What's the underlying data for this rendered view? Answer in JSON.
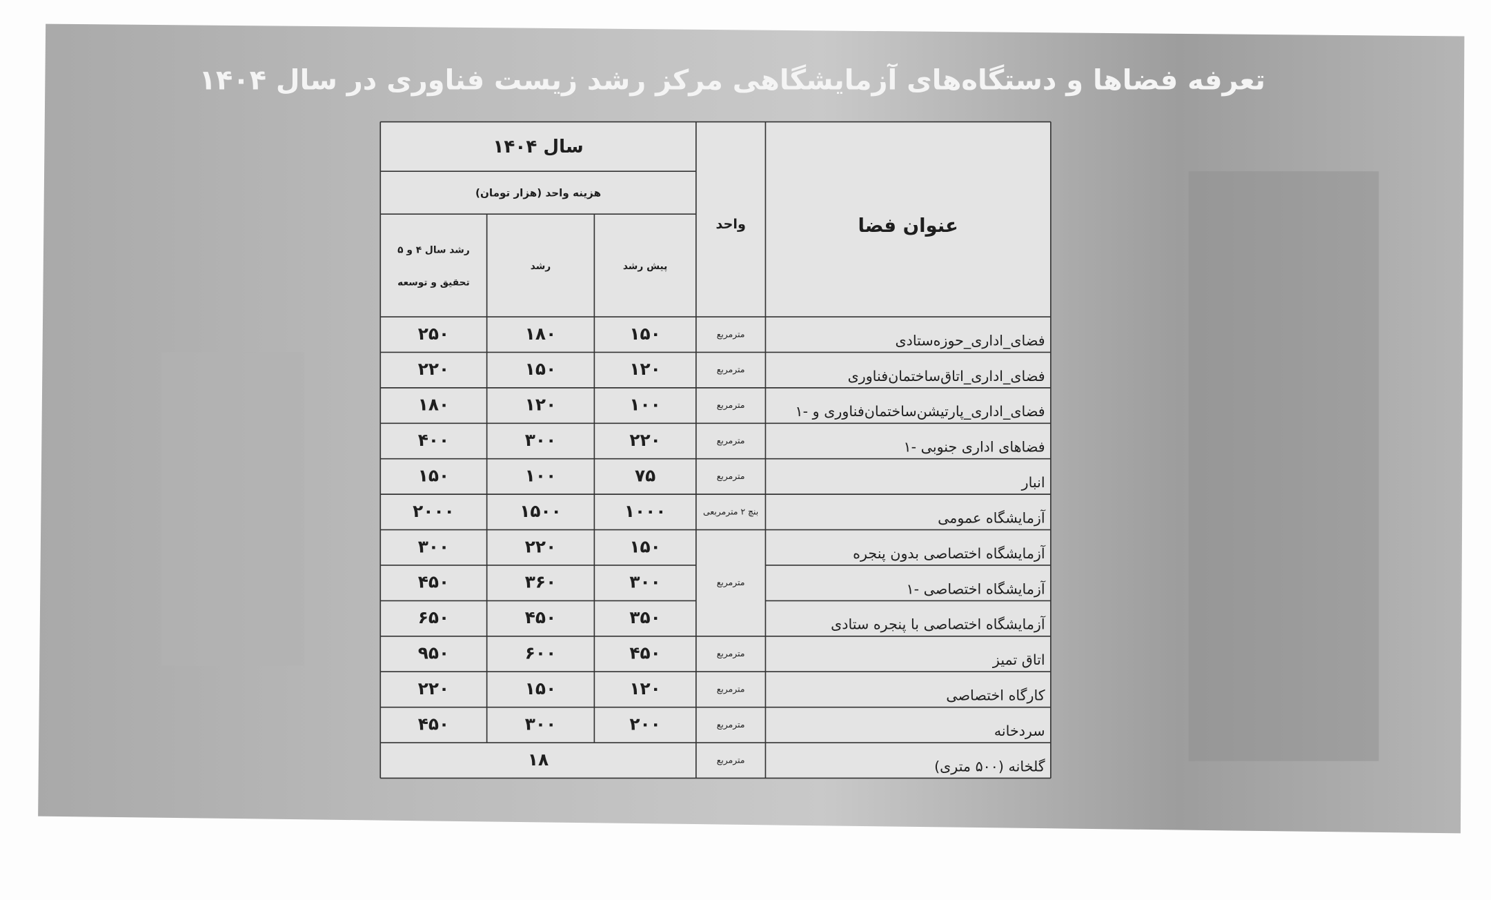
{
  "title": "تعرفه فضاها و دستگاه‌های آزمایشگاهی مرکز رشد زیست فناوری در سال ۱۴۰۴",
  "table": {
    "header": {
      "year": "سال ۱۴۰۴",
      "cost_unit": "هزینه واحد (هزار تومان)",
      "space_title": "عنوان فضا",
      "unit": "واحد",
      "columns": [
        [
          "پیش رشد"
        ],
        [
          "رشد"
        ],
        [
          "رشد سال ۴ و ۵",
          "تحقیق و توسعه"
        ]
      ]
    },
    "rows": [
      {
        "name": "فضای_اداری_حوزه‌ستادی",
        "unit": "مترمربع",
        "values": [
          "۱۵۰",
          "۱۸۰",
          "۲۵۰"
        ]
      },
      {
        "name": "فضای_اداری_اتاق‌ساختمان‌فناوری",
        "unit": "مترمربع",
        "values": [
          "۱۲۰",
          "۱۵۰",
          "۲۲۰"
        ]
      },
      {
        "name": "فضای_اداری_پارتیشن‌ساختمان‌فناوری و -۱",
        "unit": "مترمربع",
        "values": [
          "۱۰۰",
          "۱۲۰",
          "۱۸۰"
        ]
      },
      {
        "name": "فضاهای اداری جنوبی -۱",
        "unit": "مترمربع",
        "values": [
          "۲۲۰",
          "۳۰۰",
          "۴۰۰"
        ]
      },
      {
        "name": "انبار",
        "unit": "مترمربع",
        "values": [
          "۷۵",
          "۱۰۰",
          "۱۵۰"
        ]
      },
      {
        "name": "آزمایشگاه عمومی",
        "unit": "بنچ ۲ مترمربعی",
        "values": [
          "۱۰۰۰",
          "۱۵۰۰",
          "۲۰۰۰"
        ]
      },
      {
        "name": "آزمایشگاه اختصاصی بدون پنجره",
        "unit": "مترمربع",
        "values": [
          "۱۵۰",
          "۲۲۰",
          "۳۰۰"
        ]
      },
      {
        "name": "آزمایشگاه اختصاصی -۱",
        "values": [
          "۳۰۰",
          "۳۶۰",
          "۴۵۰"
        ]
      },
      {
        "name": "آزمایشگاه اختصاصی با پنجره ستادی",
        "values": [
          "۳۵۰",
          "۴۵۰",
          "۶۵۰"
        ]
      },
      {
        "name": "اتاق تمیز",
        "unit": "مترمربع",
        "values": [
          "۴۵۰",
          "۶۰۰",
          "۹۵۰"
        ]
      },
      {
        "name": "کارگاه اختصاصی",
        "unit": "مترمربع",
        "values": [
          "۱۲۰",
          "۱۵۰",
          "۲۲۰"
        ]
      },
      {
        "name": "سردخانه",
        "unit": "مترمربع",
        "values": [
          "۲۰۰",
          "۳۰۰",
          "۴۵۰"
        ]
      },
      {
        "name": "گلخانه (۵۰۰ متری)",
        "unit": "مترمربع",
        "values": [
          "۱۸"
        ]
      }
    ]
  }
}
